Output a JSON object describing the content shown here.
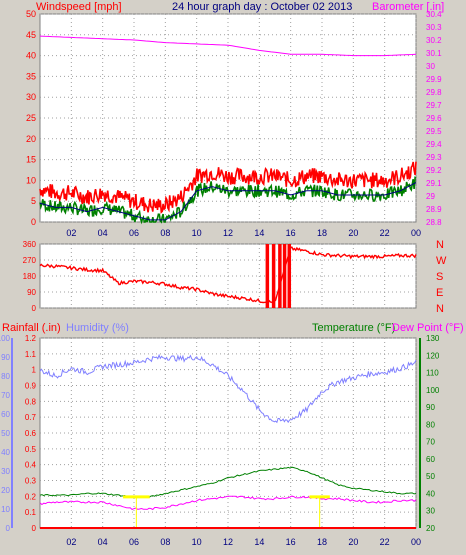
{
  "header": {
    "title": "24 hour graph day : October 02 2013",
    "left_label": "Windspeed [mph]",
    "right_label": "Barometer [.in]",
    "bottom_left_label": "Rainfall (.in)",
    "humidity_label": "Humidity (%)",
    "temperature_label": "Temperature (°F)",
    "dewpoint_label": "Dew Point (°F)"
  },
  "colors": {
    "background": "#d4d0c8",
    "plot_bg": "#ffffff",
    "grid": "#a0a0a0",
    "wind": "#ff0000",
    "gust": "#ff0000",
    "wind_avg": "#008000",
    "wind_trend": "#000080",
    "barometer": "#ff00ff",
    "direction": "#ff0000",
    "humidity": "#8080ff",
    "temperature": "#008000",
    "dewpoint": "#ff00ff",
    "rain": "#ff0000",
    "title": "#000080",
    "yellow": "#ffff00"
  },
  "chart_data": [
    {
      "type": "line",
      "name": "wind-barometer",
      "x_ticks": [
        "02",
        "04",
        "06",
        "08",
        "10",
        "12",
        "14",
        "16",
        "18",
        "20",
        "22",
        "00"
      ],
      "y_left": {
        "label": "Windspeed [mph]",
        "range": [
          0,
          50
        ],
        "ticks": [
          "0",
          "5",
          "10",
          "15",
          "20",
          "25",
          "30",
          "35",
          "40",
          "45",
          "50"
        ]
      },
      "y_right": {
        "label": "Barometer [.in]",
        "range": [
          28.8,
          30.4
        ],
        "ticks": [
          "28.8",
          "28.9",
          "29",
          "29.1",
          "29.2",
          "29.3",
          "29.4",
          "29.5",
          "29.6",
          "29.7",
          "29.8",
          "29.9",
          "30",
          "30.1",
          "30.2",
          "30.3",
          "30.4"
        ]
      },
      "series": [
        {
          "name": "Windspeed",
          "hours": [
            0,
            1,
            2,
            3,
            4,
            5,
            6,
            7,
            8,
            9,
            10,
            11,
            12,
            13,
            14,
            15,
            16,
            17,
            18,
            19,
            20,
            21,
            22,
            23,
            24
          ],
          "values": [
            5,
            4,
            4,
            3,
            4,
            3,
            2,
            1,
            1,
            3,
            8,
            9,
            8,
            8,
            8,
            8,
            7,
            8,
            8,
            7,
            7,
            7,
            7,
            8,
            10
          ]
        },
        {
          "name": "Barometer",
          "hours": [
            0,
            2,
            4,
            6,
            8,
            10,
            12,
            14,
            16,
            18,
            20,
            22,
            24
          ],
          "values": [
            30.23,
            30.22,
            30.21,
            30.2,
            30.18,
            30.17,
            30.16,
            30.12,
            30.09,
            30.09,
            30.08,
            30.08,
            30.09
          ]
        }
      ]
    },
    {
      "type": "line",
      "name": "wind-direction",
      "x_ticks": [
        "02",
        "04",
        "06",
        "08",
        "10",
        "12",
        "14",
        "16",
        "18",
        "20",
        "22",
        "00"
      ],
      "y_left": {
        "range": [
          0,
          360
        ],
        "ticks": [
          "0",
          "90",
          "180",
          "270",
          "360"
        ]
      },
      "y_right": {
        "ticks": [
          "N",
          "W",
          "S",
          "E",
          "N"
        ]
      },
      "series": [
        {
          "name": "Direction",
          "hours": [
            0,
            1,
            2,
            3,
            4,
            5,
            6,
            7,
            8,
            9,
            10,
            11,
            12,
            13,
            14,
            15,
            16,
            17,
            18,
            19,
            20,
            21,
            22,
            23,
            24
          ],
          "values": [
            240,
            235,
            225,
            215,
            210,
            140,
            150,
            145,
            135,
            115,
            105,
            80,
            65,
            55,
            40,
            30,
            335,
            320,
            300,
            295,
            290,
            290,
            290,
            295,
            295
          ]
        }
      ]
    },
    {
      "type": "line",
      "name": "rain-humidity-temperature-dewpoint",
      "x_ticks": [
        "02",
        "04",
        "06",
        "08",
        "10",
        "12",
        "14",
        "16",
        "18",
        "20",
        "22",
        "00"
      ],
      "y_left_rain": {
        "label": "Rainfall (.in)",
        "range": [
          0,
          1.2
        ],
        "ticks": [
          "0",
          "0.1",
          "0.2",
          "0.3",
          "0.4",
          "0.5",
          "0.6",
          "0.7",
          "0.8",
          "0.9",
          "1",
          "1.1",
          "1.2"
        ]
      },
      "y_left_humidity": {
        "label": "Humidity (%)",
        "range": [
          0,
          100
        ],
        "ticks": [
          "0",
          "10",
          "20",
          "30",
          "40",
          "50",
          "60",
          "70",
          "80",
          "90",
          "100"
        ]
      },
      "y_right": {
        "label": "Temperature (°F)",
        "range": [
          20,
          130
        ],
        "ticks": [
          "20",
          "30",
          "40",
          "50",
          "60",
          "70",
          "80",
          "90",
          "100",
          "110",
          "120",
          "130"
        ]
      },
      "series": [
        {
          "name": "Humidity",
          "hours": [
            0,
            1,
            2,
            3,
            4,
            5,
            6,
            7,
            8,
            9,
            10,
            11,
            12,
            13,
            14,
            15,
            16,
            17,
            18,
            19,
            20,
            21,
            22,
            23,
            24
          ],
          "values": [
            83,
            80,
            84,
            82,
            85,
            86,
            87,
            89,
            90,
            89,
            90,
            86,
            80,
            72,
            62,
            56,
            57,
            62,
            72,
            77,
            79,
            81,
            82,
            84,
            87
          ]
        },
        {
          "name": "Temperature",
          "hours": [
            0,
            1,
            2,
            3,
            4,
            5,
            6,
            7,
            8,
            9,
            10,
            11,
            12,
            13,
            14,
            15,
            16,
            17,
            18,
            19,
            20,
            21,
            22,
            23,
            24
          ],
          "values": [
            39,
            39,
            39,
            40,
            40,
            39,
            38,
            38,
            40,
            42,
            44,
            46,
            49,
            51,
            53,
            54,
            55,
            53,
            49,
            45,
            43,
            42,
            41,
            40,
            40
          ]
        },
        {
          "name": "Dew Point",
          "hours": [
            0,
            1,
            2,
            3,
            4,
            5,
            6,
            7,
            8,
            9,
            10,
            11,
            12,
            13,
            14,
            15,
            16,
            17,
            18,
            19,
            20,
            21,
            22,
            23,
            24
          ],
          "values": [
            34,
            35,
            35,
            35,
            35,
            33,
            31,
            31,
            32,
            34,
            36,
            37,
            38,
            38,
            37,
            37,
            38,
            38,
            37,
            37,
            36,
            35,
            35,
            36,
            36
          ]
        },
        {
          "name": "Rainfall",
          "hours": [
            0,
            24
          ],
          "values": [
            0,
            0
          ]
        }
      ]
    }
  ]
}
